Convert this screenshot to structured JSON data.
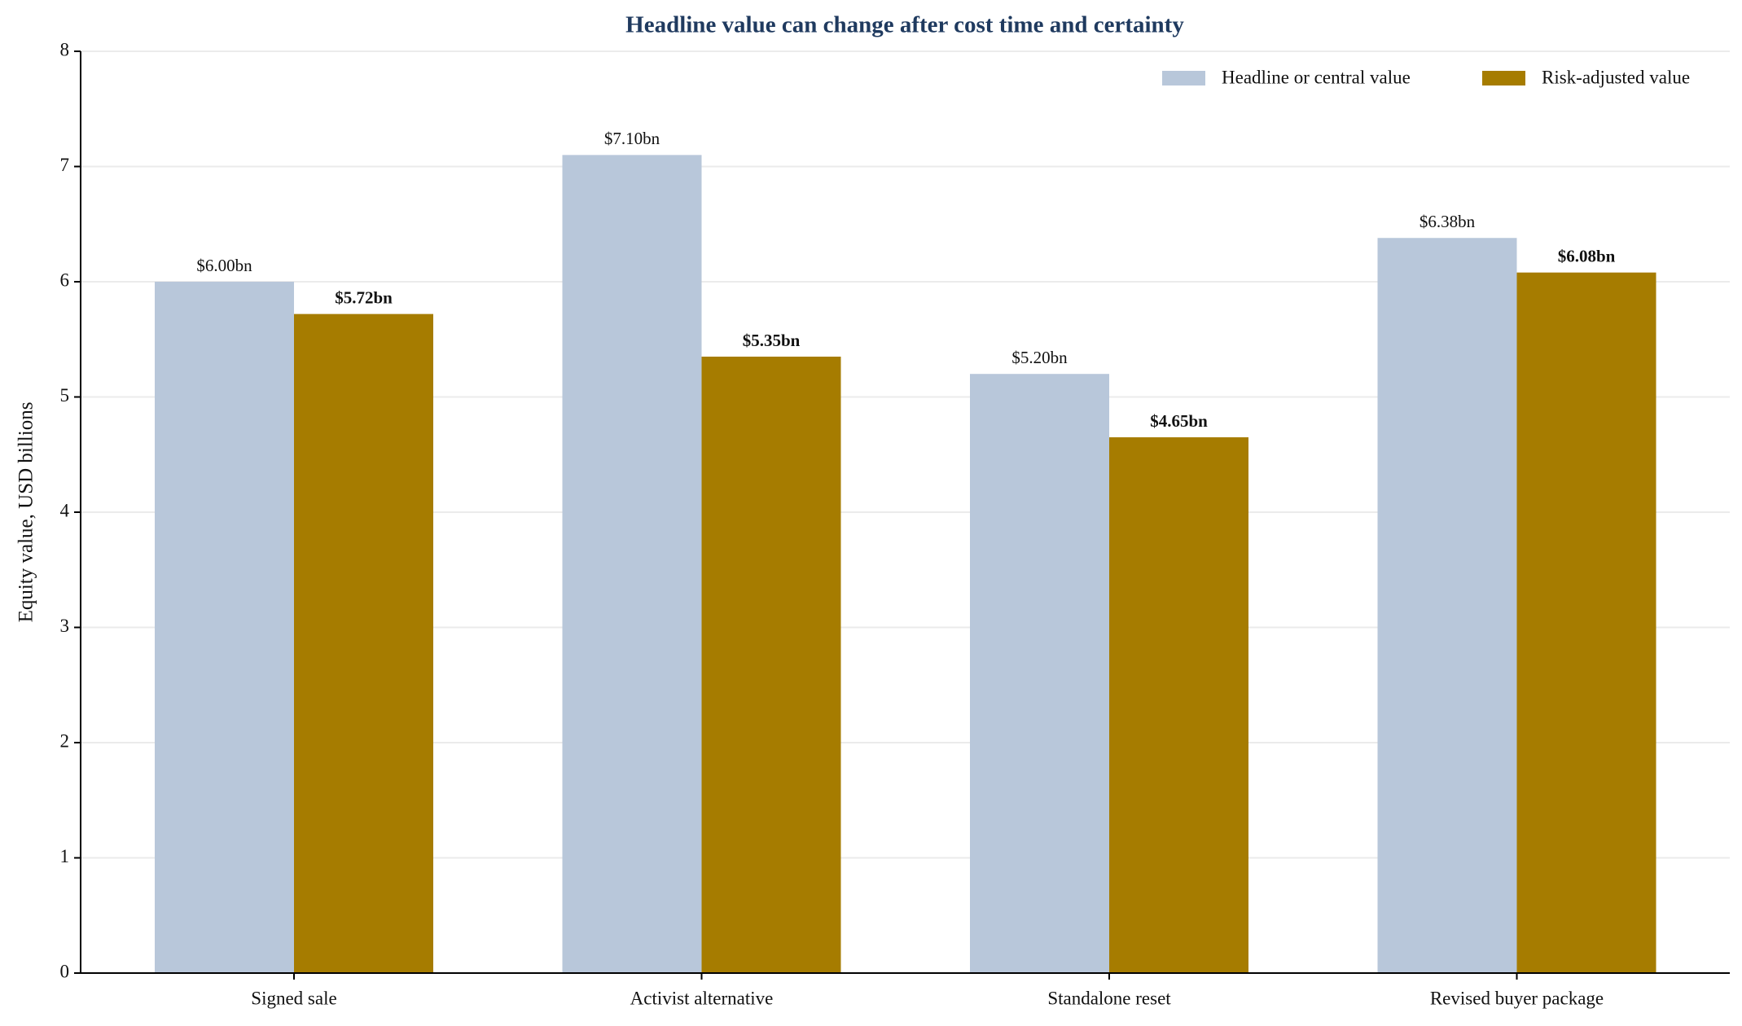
{
  "chart_data": {
    "type": "bar",
    "title": "Headline value can change after cost time and certainty",
    "y_label": "Equity value, USD billions",
    "categories": [
      "Signed sale",
      "Activist alternative",
      "Standalone reset",
      "Revised buyer package"
    ],
    "series": [
      {
        "name": "Headline or central value",
        "color": "#b8c7da",
        "values": [
          6.0,
          7.1,
          5.2,
          6.38
        ],
        "value_labels": [
          "$6.00bn",
          "$7.10bn",
          "$5.20bn",
          "$6.38bn"
        ]
      },
      {
        "name": "Risk-adjusted value",
        "color": "#a67c00",
        "values": [
          5.72,
          5.35,
          4.65,
          6.08
        ],
        "value_labels": [
          "$5.72bn",
          "$5.35bn",
          "$4.65bn",
          "$6.08bn"
        ]
      }
    ],
    "ylim": [
      0,
      8
    ],
    "yticks": [
      0,
      1,
      2,
      3,
      4,
      5,
      6,
      7,
      8
    ],
    "grid": true,
    "legend": "upper right"
  }
}
